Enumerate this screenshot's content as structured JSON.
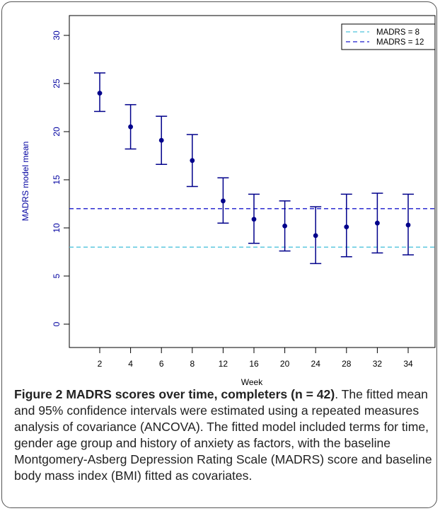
{
  "chart_data": {
    "type": "scatter",
    "xlabel": "Week",
    "ylabel": "MADRS model mean",
    "categories": [
      "2",
      "4",
      "6",
      "8",
      "12",
      "16",
      "20",
      "24",
      "28",
      "32",
      "34"
    ],
    "series": [
      {
        "values": [
          24.0,
          20.5,
          19.1,
          17.0,
          12.8,
          10.9,
          10.2,
          9.2,
          10.1,
          10.5,
          10.3
        ],
        "ci_lower": [
          22.1,
          18.2,
          16.6,
          14.3,
          10.5,
          8.4,
          7.6,
          6.3,
          7.0,
          7.4,
          7.2
        ],
        "ci_upper": [
          26.1,
          22.8,
          21.6,
          19.7,
          15.2,
          13.5,
          12.8,
          12.2,
          13.5,
          13.6,
          13.5
        ],
        "color": "#00008b"
      }
    ],
    "reference_lines": [
      {
        "name": "MADRS = 8",
        "y": 8,
        "color": "#4fc3dc",
        "style": "dashed"
      },
      {
        "name": "MADRS = 12",
        "y": 12,
        "color": "#1a1acc",
        "style": "dashed"
      }
    ],
    "ylim": [
      0,
      30
    ],
    "yticks": [
      0,
      5,
      10,
      15,
      20,
      25,
      30
    ],
    "legend_position": "top-right",
    "grid": false
  },
  "caption": {
    "label": "Figure 2 MADRS scores over time, completers (n = 42)",
    "text": ". The fitted mean and 95% confidence intervals were estimated using a repeated measures analysis of covariance (ANCOVA). The fitted model included terms for time, gender age group and history of anxiety as factors, with the baseline Montgomery-Asberg Depression Rating Scale (MADRS) score and baseline body mass index (BMI) fitted as covariates."
  }
}
